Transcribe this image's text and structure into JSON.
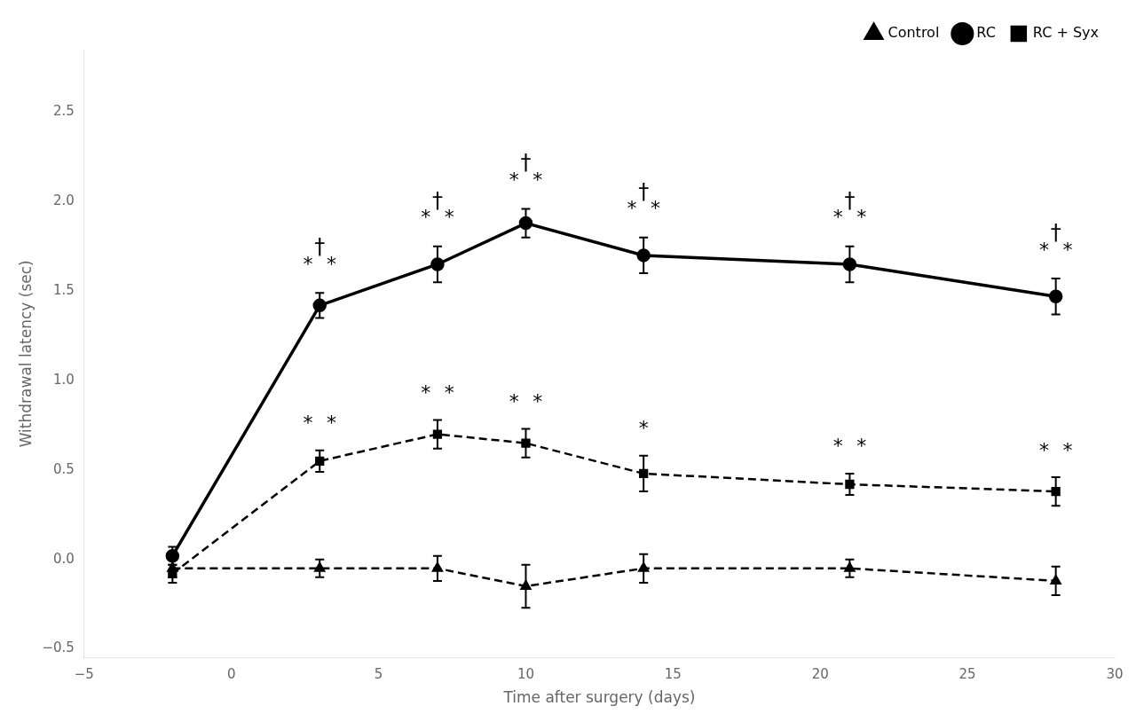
{
  "chart_data": {
    "type": "line",
    "x": [
      -2,
      3,
      7,
      10,
      14,
      21,
      28
    ],
    "series": [
      {
        "name": "Control",
        "color": "#000000",
        "marker": "triangle",
        "line_style": "dashed",
        "values": [
          -0.05,
          -0.05,
          -0.05,
          -0.15,
          -0.05,
          -0.05,
          -0.12
        ],
        "errors": [
          0.05,
          0.05,
          0.07,
          0.12,
          0.08,
          0.05,
          0.08
        ]
      },
      {
        "name": "RC",
        "color": "#000000",
        "marker": "circle",
        "line_style": "solid",
        "values": [
          0.02,
          1.42,
          1.65,
          1.88,
          1.7,
          1.65,
          1.47
        ],
        "errors": [
          0.05,
          0.07,
          0.1,
          0.08,
          0.1,
          0.1,
          0.1
        ]
      },
      {
        "name": "RC + Syx",
        "color": "#000000",
        "marker": "square",
        "line_style": "dashed",
        "values": [
          -0.08,
          0.55,
          0.7,
          0.65,
          0.48,
          0.42,
          0.38
        ],
        "errors": [
          0.05,
          0.06,
          0.08,
          0.08,
          0.1,
          0.06,
          0.08
        ]
      }
    ],
    "xlabel": "Time after surgery (days)",
    "ylabel": "Withdrawal latency (sec)",
    "xlim": [
      -5,
      30
    ],
    "ylim": [
      -0.55,
      2.85
    ],
    "xticks": [
      {
        "value": -5,
        "label": "−5"
      },
      0,
      5,
      10,
      15,
      20,
      25,
      30
    ],
    "yticks": [
      {
        "value": -0.5,
        "label": "−0.5"
      },
      {
        "value": 0,
        "label": "0.0"
      },
      0.5,
      {
        "value": 1,
        "label": "1.0"
      },
      1.5,
      {
        "value": 2,
        "label": "2.0"
      },
      2.5
    ],
    "grid": false,
    "legend": "upper right",
    "annotations": [
      {
        "x": 3,
        "y": 1.68,
        "text": "†"
      },
      {
        "x": 2.6,
        "y": 1.59,
        "text": "*"
      },
      {
        "x": 3.4,
        "y": 1.59,
        "text": "*"
      },
      {
        "x": 2.6,
        "y": 0.7,
        "text": "*"
      },
      {
        "x": 3.4,
        "y": 0.7,
        "text": "*"
      },
      {
        "x": 7,
        "y": 1.94,
        "text": "†"
      },
      {
        "x": 6.6,
        "y": 1.85,
        "text": "*"
      },
      {
        "x": 7.4,
        "y": 1.85,
        "text": "*"
      },
      {
        "x": 6.6,
        "y": 0.87,
        "text": "*"
      },
      {
        "x": 7.4,
        "y": 0.87,
        "text": "*"
      },
      {
        "x": 10,
        "y": 2.15,
        "text": "†"
      },
      {
        "x": 9.6,
        "y": 2.06,
        "text": "*"
      },
      {
        "x": 10.4,
        "y": 2.06,
        "text": "*"
      },
      {
        "x": 9.6,
        "y": 0.82,
        "text": "*"
      },
      {
        "x": 10.4,
        "y": 0.82,
        "text": "*"
      },
      {
        "x": 14,
        "y": 1.99,
        "text": "†"
      },
      {
        "x": 13.6,
        "y": 1.9,
        "text": "*"
      },
      {
        "x": 14.4,
        "y": 1.9,
        "text": "*"
      },
      {
        "x": 14,
        "y": 0.67,
        "text": "*"
      },
      {
        "x": 21,
        "y": 1.94,
        "text": "†"
      },
      {
        "x": 20.6,
        "y": 1.85,
        "text": "*"
      },
      {
        "x": 21.4,
        "y": 1.85,
        "text": "*"
      },
      {
        "x": 20.6,
        "y": 0.57,
        "text": "*"
      },
      {
        "x": 21.4,
        "y": 0.57,
        "text": "*"
      },
      {
        "x": 28,
        "y": 1.76,
        "text": "†"
      },
      {
        "x": 27.6,
        "y": 1.67,
        "text": "*"
      },
      {
        "x": 28.4,
        "y": 1.67,
        "text": "*"
      },
      {
        "x": 27.6,
        "y": 0.55,
        "text": "*"
      },
      {
        "x": 28.4,
        "y": 0.55,
        "text": "*"
      }
    ]
  }
}
